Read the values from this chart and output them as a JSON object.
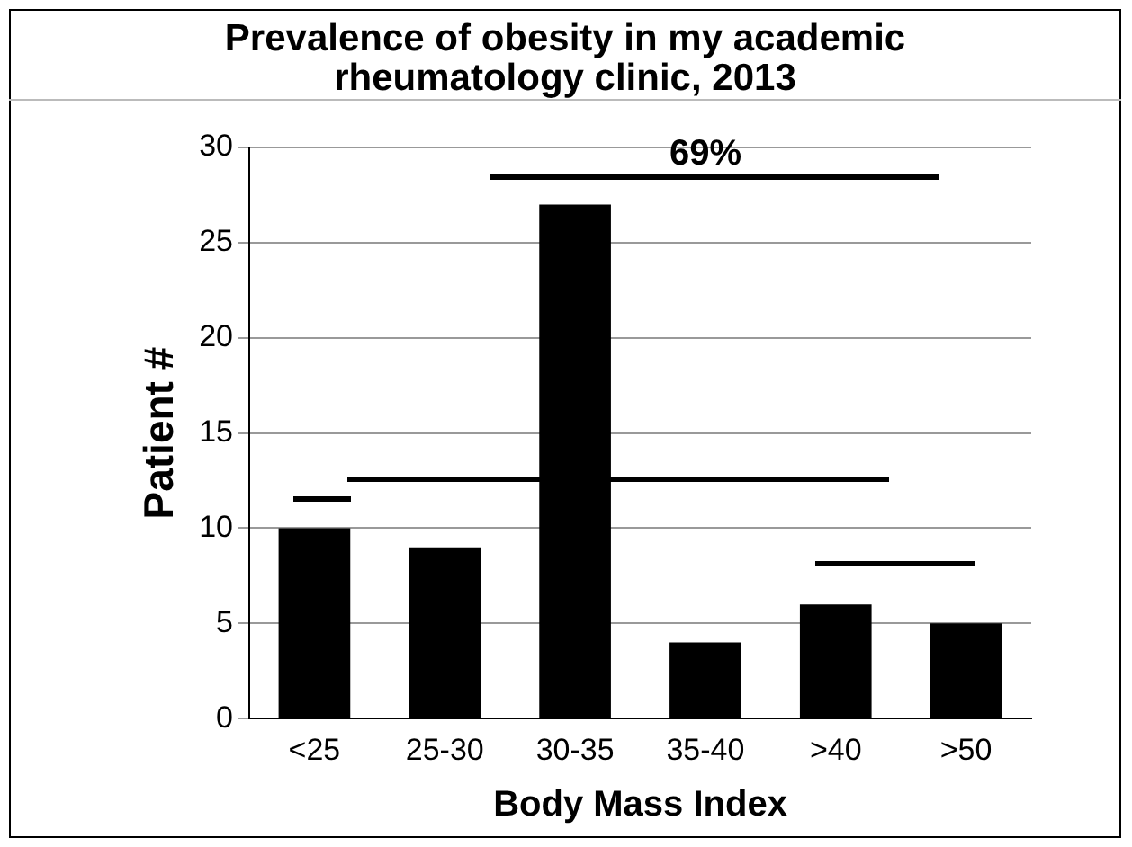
{
  "chart_data": {
    "type": "bar",
    "title": "Prevalence of obesity in my academic rheumatology clinic, 2013",
    "xlabel": "Body Mass Index",
    "ylabel": "Patient #",
    "categories": [
      "<25",
      "25-30",
      "30-35",
      "35-40",
      ">40",
      ">50"
    ],
    "values": [
      10,
      9,
      27,
      4,
      6,
      5
    ],
    "color": "#000000",
    "ylim": [
      0,
      30
    ],
    "yticks": [
      0,
      5,
      10,
      15,
      20,
      25,
      30
    ],
    "grid": "y",
    "annotations": [
      "69%"
    ]
  }
}
